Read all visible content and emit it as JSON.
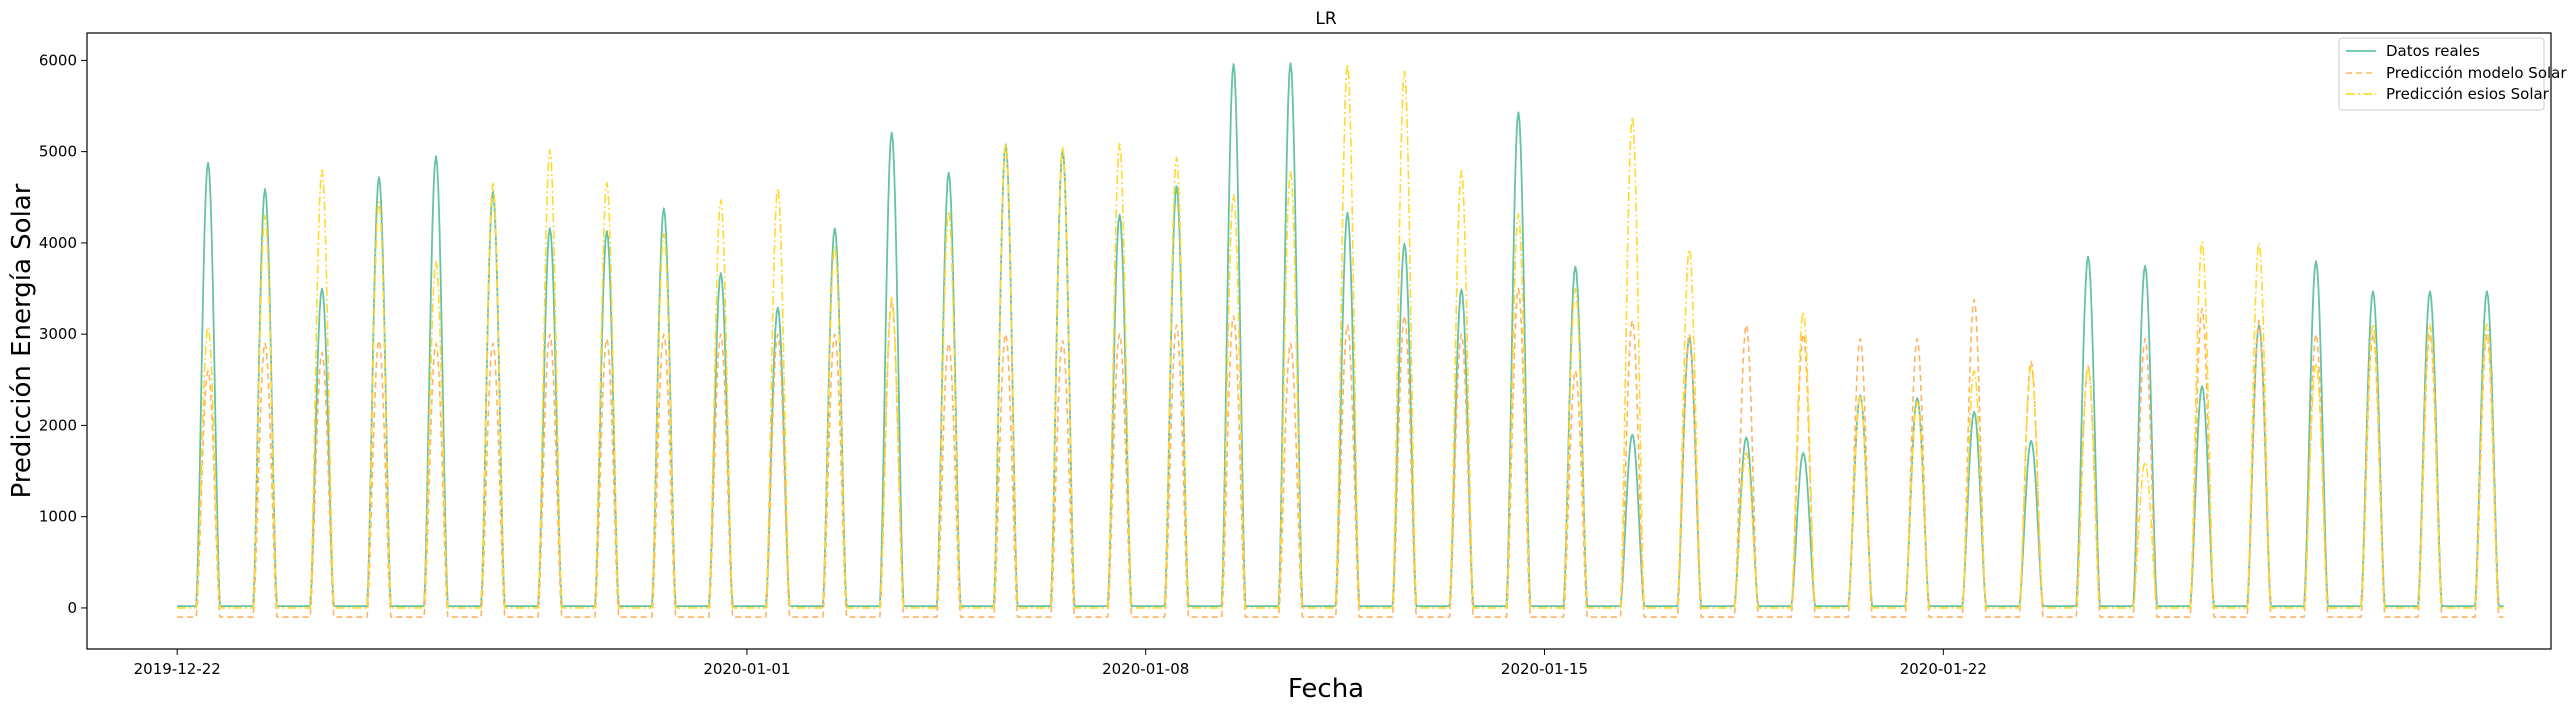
{
  "chart_data": {
    "type": "line",
    "title": "LR",
    "xlabel": "Fecha",
    "ylabel": "Predicción Energía Solar",
    "xlim": [
      "2019-12-20T10:00",
      "2020-02-01T16:00"
    ],
    "ylim": [
      -450,
      6300
    ],
    "yticks": [
      0,
      1000,
      2000,
      3000,
      4000,
      5000,
      6000
    ],
    "xticks": [
      "2019-12-22",
      "2020-01-01",
      "2020-01-08",
      "2020-01-15",
      "2020-01-22"
    ],
    "x_start": "2019-12-22",
    "x_end": "2020-01-31T20:00",
    "legend_position": "top-right",
    "series": [
      {
        "name": "Datos reales",
        "color": "#66c2a5",
        "style": "solid",
        "daily_peaks": [
          4880,
          4590,
          3500,
          4720,
          4950,
          4560,
          4160,
          4130,
          4380,
          3670,
          3290,
          4160,
          5210,
          4770,
          5080,
          5020,
          4310,
          4620,
          5960,
          5970,
          4330,
          3990,
          3490,
          5430,
          3740,
          1900,
          2960,
          1870,
          1700,
          2330,
          2300,
          2150,
          1830,
          3850,
          3750,
          2430,
          3100,
          3800,
          3470
        ],
        "night_value": 20
      },
      {
        "name": "Predicción modelo Solar",
        "color": "#fdb462",
        "style": "dashed",
        "daily_peaks": [
          2600,
          2900,
          2800,
          2930,
          2900,
          2900,
          3000,
          2950,
          3000,
          3000,
          3000,
          3000,
          3350,
          2900,
          3000,
          2930,
          3000,
          3100,
          3200,
          2900,
          3100,
          3200,
          3000,
          3500,
          2600,
          3150,
          3000,
          3100,
          3000,
          2950,
          2950,
          3380,
          2700,
          2650,
          2950,
          3280,
          3150,
          3000,
          3000
        ],
        "night_value": -100
      },
      {
        "name": "Predicción esios Solar",
        "color": "#ffd92f",
        "style": "dashdot",
        "daily_peaks": [
          3080,
          4300,
          4800,
          4450,
          3800,
          4650,
          5020,
          4660,
          4100,
          4470,
          4600,
          3960,
          3400,
          4350,
          5090,
          5050,
          5090,
          4940,
          4530,
          4780,
          5960,
          5880,
          4790,
          4320,
          3500,
          5380,
          3930,
          1700,
          3240,
          2330,
          2260,
          2600,
          2650,
          2630,
          1600,
          4010,
          4000,
          2680,
          3110
        ],
        "night_value": 0
      }
    ]
  }
}
